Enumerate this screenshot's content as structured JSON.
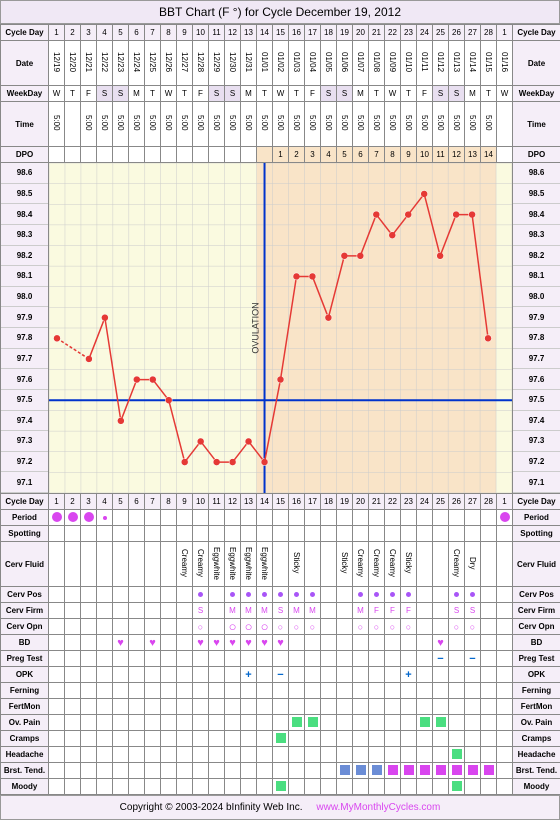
{
  "title": "BBT Chart (F °) for Cycle December 19, 2012",
  "labels": {
    "cycleDay": "Cycle Day",
    "date": "Date",
    "weekday": "WeekDay",
    "time": "Time",
    "dpo": "DPO",
    "period": "Period",
    "spotting": "Spotting",
    "cervFluid": "Cerv Fluid",
    "cervPos": "Cerv Pos",
    "cervFirm": "Cerv Firm",
    "cervOpn": "Cerv Opn",
    "bd": "BD",
    "pregTest": "Preg Test",
    "opk": "OPK",
    "ferning": "Ferning",
    "fertMon": "FertMon",
    "ovPain": "Ov. Pain",
    "cramps": "Cramps",
    "headache": "Headache",
    "brstTend": "Brst. Tend.",
    "moody": "Moody"
  },
  "days": 29,
  "cycleDays": [
    1,
    2,
    3,
    4,
    5,
    6,
    7,
    8,
    9,
    10,
    11,
    12,
    13,
    14,
    15,
    16,
    17,
    18,
    19,
    20,
    21,
    22,
    23,
    24,
    25,
    26,
    27,
    28,
    1
  ],
  "dates": [
    "12/19",
    "12/20",
    "12/21",
    "12/22",
    "12/23",
    "12/24",
    "12/25",
    "12/26",
    "12/27",
    "12/28",
    "12/29",
    "12/30",
    "12/31",
    "01/01",
    "01/02",
    "01/03",
    "01/04",
    "01/05",
    "01/06",
    "01/07",
    "01/08",
    "01/09",
    "01/10",
    "01/11",
    "01/12",
    "01/13",
    "01/14",
    "01/15",
    "01/16"
  ],
  "weekdays": [
    "W",
    "T",
    "F",
    "S",
    "S",
    "M",
    "T",
    "W",
    "T",
    "F",
    "S",
    "S",
    "M",
    "T",
    "W",
    "T",
    "F",
    "S",
    "S",
    "M",
    "T",
    "W",
    "T",
    "F",
    "S",
    "S",
    "M",
    "T",
    "W"
  ],
  "times": [
    "5:00",
    "",
    "5:00",
    "5:00",
    "5:00",
    "5:00",
    "5:00",
    "5:00",
    "5:00",
    "5:00",
    "5:00",
    "5:00",
    "5:00",
    "5:00",
    "5:00",
    "5:00",
    "5:00",
    "5:00",
    "5:00",
    "5:00",
    "5:00",
    "5:00",
    "5:00",
    "5:00",
    "5:00",
    "5:00",
    "5:00",
    "5:00",
    ""
  ],
  "dpo": [
    "",
    "",
    "",
    "",
    "",
    "",
    "",
    "",
    "",
    "",
    "",
    "",
    "",
    "",
    "1",
    "2",
    "3",
    "4",
    "5",
    "6",
    "7",
    "8",
    "9",
    "10",
    "11",
    "12",
    "13",
    "14",
    ""
  ],
  "ovulationDay": 14,
  "coverline": 97.5,
  "tempScale": {
    "min": 97.1,
    "max": 98.6,
    "labels": [
      "98.6",
      "98.5",
      "98.4",
      "98.3",
      "98.2",
      "98.1",
      "98.0",
      "97.9",
      "97.8",
      "97.7",
      "97.6",
      "97.5",
      "97.4",
      "97.3",
      "97.2",
      "97.1"
    ]
  },
  "temps": [
    97.8,
    null,
    97.7,
    97.9,
    97.4,
    97.6,
    97.6,
    97.5,
    97.2,
    97.3,
    97.2,
    97.2,
    97.3,
    97.2,
    97.6,
    98.1,
    98.1,
    97.9,
    98.2,
    98.2,
    98.4,
    98.3,
    98.4,
    98.5,
    98.2,
    98.4,
    98.4,
    97.8,
    null
  ],
  "lutealShade": {
    "start": 14,
    "color": "#f9e4c8"
  },
  "colors": {
    "bgPre": "#fafae0",
    "bgPost": "#f9e4c8",
    "line": "#e53935",
    "point": "#e53935",
    "coverline": "#0033cc",
    "ovline": "#0033cc",
    "grid": "#cccccc",
    "header": "#f5eef8"
  },
  "period": [
    "dot",
    "dot",
    "dot",
    "sm",
    "",
    "",
    "",
    "",
    "",
    "",
    "",
    "",
    "",
    "",
    "",
    "",
    "",
    "",
    "",
    "",
    "",
    "",
    "",
    "",
    "",
    "",
    "",
    "",
    "dot"
  ],
  "cervFluid": [
    "",
    "",
    "",
    "",
    "",
    "",
    "",
    "",
    "Creamy",
    "Creamy",
    "Eggwhite",
    "Eggwhite",
    "Eggwhite",
    "Eggwhite",
    "",
    "Sticky",
    "",
    "",
    "Sticky",
    "Creamy",
    "Creamy",
    "Creamy",
    "Sticky",
    "",
    "",
    "Creamy",
    "Dry",
    "",
    ""
  ],
  "cervPos": [
    "",
    "",
    "",
    "",
    "",
    "",
    "",
    "",
    "",
    "dot",
    "",
    "dot",
    "dot",
    "dot",
    "dot",
    "dot",
    "dot",
    "",
    "",
    "dot",
    "dot",
    "dot",
    "dot",
    "",
    "",
    "dot",
    "dot",
    "",
    ""
  ],
  "cervFirm": [
    "",
    "",
    "",
    "",
    "",
    "",
    "",
    "",
    "",
    "S",
    "",
    "M",
    "M",
    "M",
    "S",
    "M",
    "M",
    "",
    "",
    "M",
    "F",
    "F",
    "F",
    "",
    "",
    "S",
    "S",
    "",
    ""
  ],
  "cervOpn": [
    "",
    "",
    "",
    "",
    "",
    "",
    "",
    "",
    "",
    "o",
    "",
    "O",
    "O",
    "O",
    "o",
    "o",
    "o",
    "",
    "",
    "o",
    "o",
    "o",
    "o",
    "",
    "",
    "o",
    "o",
    "",
    ""
  ],
  "bd": [
    "",
    "",
    "",
    "",
    "h",
    "",
    "h",
    "",
    "",
    "h",
    "h",
    "h",
    "h",
    "h",
    "h",
    "",
    "",
    "",
    "",
    "",
    "",
    "",
    "",
    "",
    "h",
    "",
    "",
    "",
    ""
  ],
  "pregTest": [
    "",
    "",
    "",
    "",
    "",
    "",
    "",
    "",
    "",
    "",
    "",
    "",
    "",
    "",
    "",
    "",
    "",
    "",
    "",
    "",
    "",
    "",
    "",
    "",
    "m",
    "",
    "m",
    "",
    ""
  ],
  "opk": [
    "",
    "",
    "",
    "",
    "",
    "",
    "",
    "",
    "",
    "",
    "",
    "",
    "p",
    "",
    "m",
    "",
    "",
    "",
    "",
    "",
    "",
    "",
    "p",
    "",
    "",
    "",
    "",
    "",
    ""
  ],
  "ovPain": [
    "",
    "",
    "",
    "",
    "",
    "",
    "",
    "",
    "",
    "",
    "",
    "",
    "",
    "",
    "",
    "g",
    "g",
    "",
    "",
    "",
    "",
    "",
    "",
    "g",
    "g",
    "",
    "",
    "",
    ""
  ],
  "cramps": [
    "",
    "",
    "",
    "",
    "",
    "",
    "",
    "",
    "",
    "",
    "",
    "",
    "",
    "",
    "g",
    "",
    "",
    "",
    "",
    "",
    "",
    "",
    "",
    "",
    "",
    "",
    "",
    "",
    ""
  ],
  "headache": [
    "",
    "",
    "",
    "",
    "",
    "",
    "",
    "",
    "",
    "",
    "",
    "",
    "",
    "",
    "",
    "",
    "",
    "",
    "",
    "",
    "",
    "",
    "",
    "",
    "",
    "g",
    "",
    "",
    ""
  ],
  "brstTend": [
    "",
    "",
    "",
    "",
    "",
    "",
    "",
    "",
    "",
    "",
    "",
    "",
    "",
    "",
    "",
    "",
    "",
    "",
    "b",
    "b",
    "b",
    "m",
    "m",
    "m",
    "m",
    "m",
    "m",
    "m",
    ""
  ],
  "moody": [
    "",
    "",
    "",
    "",
    "",
    "",
    "",
    "",
    "",
    "",
    "",
    "",
    "",
    "",
    "g",
    "",
    "",
    "",
    "",
    "",
    "",
    "",
    "",
    "",
    "",
    "g",
    "",
    "",
    ""
  ],
  "footer": {
    "copyright": "Copyright © 2003-2024 bInfinity Web Inc.",
    "link": "www.MyMonthlyCycles.com"
  }
}
